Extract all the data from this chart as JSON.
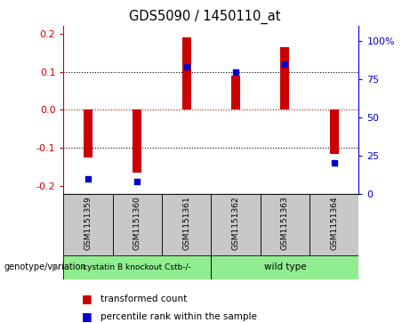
{
  "title": "GDS5090 / 1450110_at",
  "samples": [
    "GSM1151359",
    "GSM1151360",
    "GSM1151361",
    "GSM1151362",
    "GSM1151363",
    "GSM1151364"
  ],
  "transformed_count": [
    -0.125,
    -0.165,
    0.19,
    0.09,
    0.165,
    -0.115
  ],
  "percentile_rank": [
    10,
    8,
    83,
    80,
    85,
    20
  ],
  "ylim_left": [
    -0.22,
    0.22
  ],
  "ylim_right": [
    0,
    110
  ],
  "yticks_left": [
    -0.2,
    -0.1,
    0.0,
    0.1,
    0.2
  ],
  "yticks_right": [
    0,
    25,
    50,
    75,
    100
  ],
  "bar_color": "#cc0000",
  "dot_color": "#0000cc",
  "zero_line_color": "#cc0000",
  "grid_color": "#000000",
  "background_color": "#ffffff",
  "plot_bg_color": "#ffffff",
  "genotype_label": "genotype/variation",
  "legend_transformed": "transformed count",
  "legend_percentile": "percentile rank within the sample",
  "group1_label": "cystatin B knockout Cstb-/-",
  "group2_label": "wild type",
  "group1_color": "#90ee90",
  "group2_color": "#90ee90",
  "group1_indices": [
    0,
    1,
    2
  ],
  "group2_indices": [
    3,
    4,
    5
  ],
  "sample_box_color": "#c8c8c8",
  "bar_width": 0.18
}
